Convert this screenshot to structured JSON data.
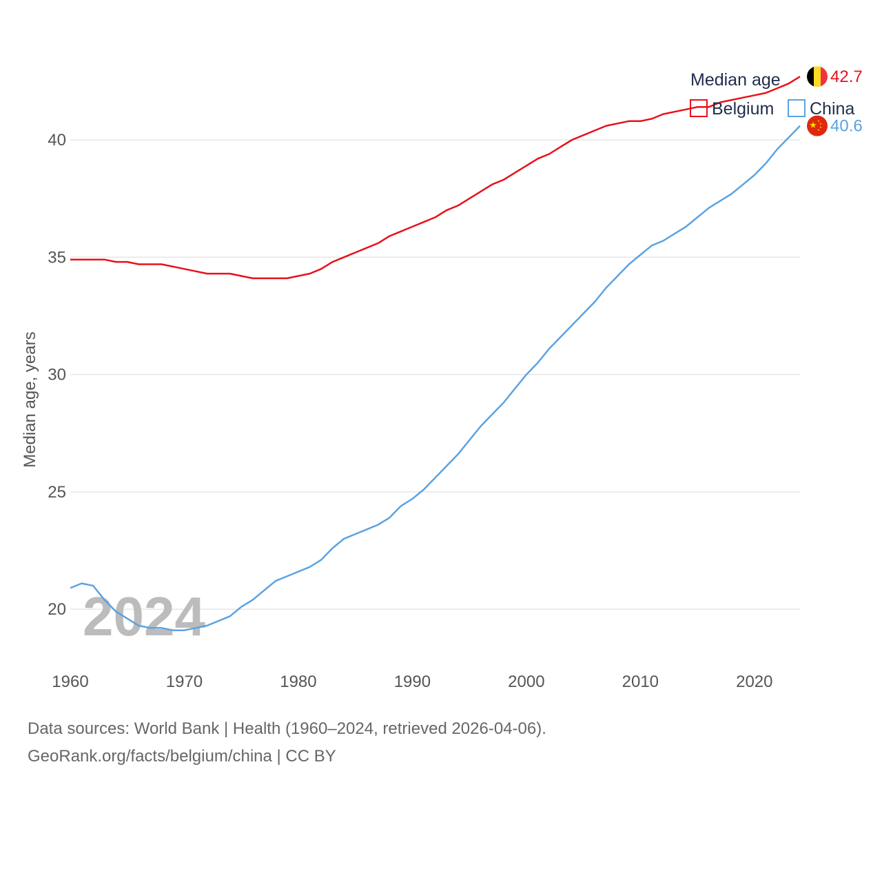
{
  "chart_data": {
    "type": "line",
    "legend": {
      "title": "Median age",
      "placement": "top-right"
    },
    "ylabel": "Median age, years",
    "xlabel": "",
    "xlim": [
      1960,
      2024
    ],
    "ylim": [
      17.8,
      44.2
    ],
    "x_ticks": [
      1960,
      1970,
      1980,
      1990,
      2000,
      2010,
      2020
    ],
    "y_ticks": [
      20,
      25,
      30,
      35,
      40
    ],
    "grid": "horizontal",
    "current_year": "2024",
    "x": [
      1960,
      1961,
      1962,
      1963,
      1964,
      1965,
      1966,
      1967,
      1968,
      1969,
      1970,
      1971,
      1972,
      1973,
      1974,
      1975,
      1976,
      1977,
      1978,
      1979,
      1980,
      1981,
      1982,
      1983,
      1984,
      1985,
      1986,
      1987,
      1988,
      1989,
      1990,
      1991,
      1992,
      1993,
      1994,
      1995,
      1996,
      1997,
      1998,
      1999,
      2000,
      2001,
      2002,
      2003,
      2004,
      2005,
      2006,
      2007,
      2008,
      2009,
      2010,
      2011,
      2012,
      2013,
      2014,
      2015,
      2016,
      2017,
      2018,
      2019,
      2020,
      2021,
      2022,
      2023,
      2024
    ],
    "series": [
      {
        "name": "Belgium",
        "color": "#e8101a",
        "end_label": "42.7",
        "flag": "belgium-flag-icon",
        "values": [
          34.9,
          34.9,
          34.9,
          34.9,
          34.8,
          34.8,
          34.7,
          34.7,
          34.7,
          34.6,
          34.5,
          34.4,
          34.3,
          34.3,
          34.3,
          34.2,
          34.1,
          34.1,
          34.1,
          34.1,
          34.2,
          34.3,
          34.5,
          34.8,
          35.0,
          35.2,
          35.4,
          35.6,
          35.9,
          36.1,
          36.3,
          36.5,
          36.7,
          37.0,
          37.2,
          37.5,
          37.8,
          38.1,
          38.3,
          38.6,
          38.9,
          39.2,
          39.4,
          39.7,
          40.0,
          40.2,
          40.4,
          40.6,
          40.7,
          40.8,
          40.8,
          40.9,
          41.1,
          41.2,
          41.3,
          41.4,
          41.4,
          41.6,
          41.7,
          41.8,
          41.9,
          42.0,
          42.2,
          42.4,
          42.7
        ]
      },
      {
        "name": "China",
        "color": "#5ba2e2",
        "end_label": "40.6",
        "flag": "china-flag-icon",
        "values": [
          20.9,
          21.1,
          21.0,
          20.4,
          19.9,
          19.6,
          19.3,
          19.2,
          19.2,
          19.1,
          19.1,
          19.2,
          19.3,
          19.5,
          19.7,
          20.1,
          20.4,
          20.8,
          21.2,
          21.4,
          21.6,
          21.8,
          22.1,
          22.6,
          23.0,
          23.2,
          23.4,
          23.6,
          23.9,
          24.4,
          24.7,
          25.1,
          25.6,
          26.1,
          26.6,
          27.2,
          27.8,
          28.3,
          28.8,
          29.4,
          30.0,
          30.5,
          31.1,
          31.6,
          32.1,
          32.6,
          33.1,
          33.7,
          34.2,
          34.7,
          35.1,
          35.5,
          35.7,
          36.0,
          36.3,
          36.7,
          37.1,
          37.4,
          37.7,
          38.1,
          38.5,
          39.0,
          39.6,
          40.1,
          40.6
        ]
      }
    ]
  },
  "source": {
    "line1": "Data sources: World Bank | Health (1960–2024, retrieved 2026-04-06).",
    "line2": "GeoRank.org/facts/belgium/china | CC BY"
  }
}
